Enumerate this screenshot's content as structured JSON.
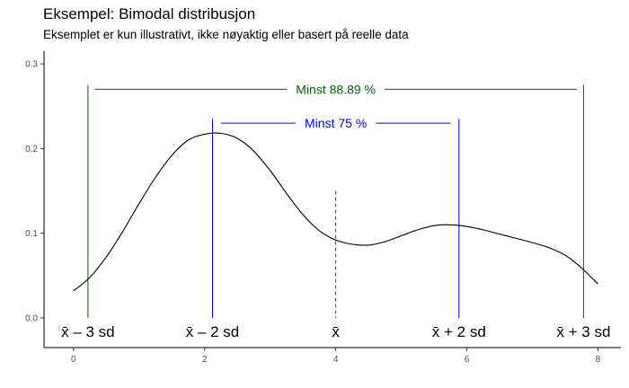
{
  "chart_data": {
    "type": "line",
    "title": "Eksempel: Bimodal distribusjon",
    "subtitle": "Eksemplet er kun illustrativt, ikke nøyaktig eller basert på reelle data",
    "xlabel": "",
    "ylabel": "",
    "xlim": [
      -0.45,
      8.35
    ],
    "ylim": [
      -0.035,
      0.315
    ],
    "x_ticks": [
      0,
      2,
      4,
      6,
      8
    ],
    "y_ticks": [
      0.0,
      0.1,
      0.2,
      0.3
    ],
    "x_tick_labels": [
      "0",
      "2",
      "4",
      "6",
      "8"
    ],
    "y_tick_labels": [
      "0.0",
      "0.1",
      "0.2",
      "0.3"
    ],
    "grid": false,
    "series": [
      {
        "color": "#000000",
        "x": [
          0.0,
          0.25,
          0.5,
          0.75,
          1.0,
          1.25,
          1.5,
          1.75,
          2.0,
          2.25,
          2.5,
          2.75,
          3.0,
          3.25,
          3.5,
          3.75,
          4.0,
          4.25,
          4.5,
          4.75,
          5.0,
          5.25,
          5.5,
          5.75,
          6.0,
          6.25,
          6.5,
          6.75,
          7.0,
          7.25,
          7.5,
          7.75,
          8.0
        ],
        "y": [
          0.032,
          0.048,
          0.072,
          0.102,
          0.135,
          0.166,
          0.192,
          0.21,
          0.217,
          0.218,
          0.212,
          0.197,
          0.174,
          0.147,
          0.122,
          0.103,
          0.092,
          0.087,
          0.086,
          0.09,
          0.097,
          0.104,
          0.109,
          0.11,
          0.108,
          0.104,
          0.099,
          0.094,
          0.089,
          0.083,
          0.074,
          0.059,
          0.04
        ]
      }
    ],
    "reference_lines": [
      {
        "label": "x̄ – 3 sd",
        "x": 0.22,
        "top": 0.275,
        "color": "#006400"
      },
      {
        "label": "x̄ – 2 sd",
        "x": 2.12,
        "top": 0.235,
        "color": "#0000ff"
      },
      {
        "label": "x̄",
        "x": 4.0,
        "top": 0.15,
        "color": "#cc0000",
        "dashed": true
      },
      {
        "label": "x̄ + 2 sd",
        "x": 5.88,
        "top": 0.235,
        "color": "#0000ff"
      },
      {
        "label": "x̄ + 3 sd",
        "x": 7.78,
        "top": 0.275,
        "color": "#006400"
      }
    ],
    "annotations": [
      {
        "text": "Minst 88.89 %",
        "x1": 0.32,
        "x2": 7.68,
        "y": 0.27,
        "color": "#006400"
      },
      {
        "text": "Minst 75 %",
        "x1": 2.25,
        "x2": 5.75,
        "y": 0.23,
        "color": "#0000ff"
      }
    ]
  }
}
